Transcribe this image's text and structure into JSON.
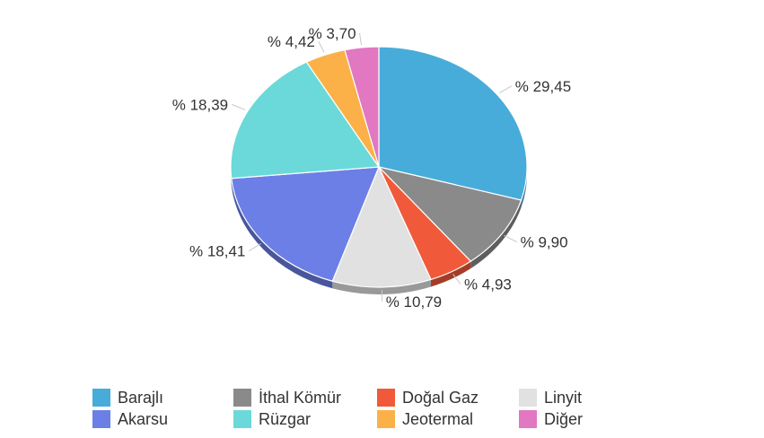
{
  "chart_data": {
    "type": "pie",
    "style": "3d",
    "value_format": "% {value}",
    "decimal_separator": ",",
    "legend_position": "bottom",
    "legend_columns": 4,
    "slices": [
      {
        "name": "Barajlı",
        "value": 29.45,
        "label": "% 29,45",
        "color": "#47ACD9"
      },
      {
        "name": "İthal Kömür",
        "value": 9.9,
        "label": "% 9,90",
        "color": "#8A8A8A"
      },
      {
        "name": "Doğal Gaz",
        "value": 4.93,
        "label": "% 4,93",
        "color": "#F05A3A"
      },
      {
        "name": "Linyit",
        "value": 10.79,
        "label": "% 10,79",
        "color": "#E1E1E1"
      },
      {
        "name": "Akarsu",
        "value": 18.41,
        "label": "% 18,41",
        "color": "#6C7FE6"
      },
      {
        "name": "Rüzgar",
        "value": 18.39,
        "label": "% 18,39",
        "color": "#6BD9D9"
      },
      {
        "name": "Jeotermal",
        "value": 4.42,
        "label": "% 4,42",
        "color": "#FBB147"
      },
      {
        "name": "Diğer",
        "value": 3.7,
        "label": "% 3,70",
        "color": "#E277C2"
      }
    ],
    "legend_order": [
      "Barajlı",
      "İthal Kömür",
      "Doğal Gaz",
      "Linyit",
      "Akarsu",
      "Rüzgar",
      "Jeotermal",
      "Diğer"
    ]
  }
}
